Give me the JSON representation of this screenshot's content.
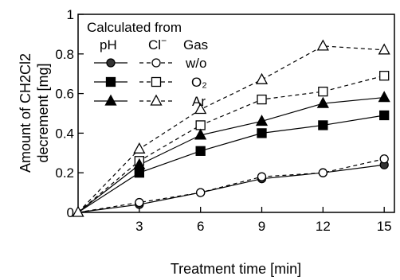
{
  "chart_data": {
    "type": "line",
    "xlabel": "Treatment time [min]",
    "ylabel_line1": "Amount of CH2Cl2",
    "ylabel_line2": "decrement [mg]",
    "x": [
      0,
      3,
      6,
      9,
      12,
      15
    ],
    "xlim": [
      0,
      15.5
    ],
    "ylim": [
      0,
      1.0
    ],
    "x_ticks": [
      3,
      6,
      9,
      12,
      15
    ],
    "y_ticks": [
      0,
      0.2,
      0.4,
      0.6,
      0.8,
      1
    ],
    "y_tick_labels": [
      "0",
      "0.2",
      "0.4",
      "0.6",
      "0.8",
      "1"
    ],
    "grid": false,
    "legend": {
      "placement": "top-left",
      "title": "Calculated from",
      "col_ph": "pH",
      "col_cl": "Cl",
      "col_cl_sup": "−",
      "col_gas": "Gas",
      "rows": [
        "w/o",
        "O₂",
        "Ar"
      ]
    },
    "series": [
      {
        "method": "pH",
        "gas": "w/o",
        "marker": "circle",
        "filled": true,
        "style": "solid",
        "values": [
          0,
          0.04,
          0.1,
          0.17,
          0.2,
          0.24
        ]
      },
      {
        "method": "Cl-",
        "gas": "w/o",
        "marker": "circle",
        "filled": false,
        "style": "dashed",
        "values": [
          0,
          0.05,
          0.1,
          0.18,
          0.2,
          0.27
        ]
      },
      {
        "method": "pH",
        "gas": "O2",
        "marker": "square",
        "filled": true,
        "style": "solid",
        "values": [
          0,
          0.2,
          0.31,
          0.4,
          0.44,
          0.49
        ]
      },
      {
        "method": "Cl-",
        "gas": "O2",
        "marker": "square",
        "filled": false,
        "style": "dashed",
        "values": [
          0,
          0.26,
          0.44,
          0.57,
          0.61,
          0.69
        ]
      },
      {
        "method": "pH",
        "gas": "Ar",
        "marker": "triangle",
        "filled": true,
        "style": "solid",
        "values": [
          0,
          0.24,
          0.39,
          0.46,
          0.55,
          0.58
        ]
      },
      {
        "method": "Cl-",
        "gas": "Ar",
        "marker": "triangle",
        "filled": false,
        "style": "dashed",
        "values": [
          0,
          0.32,
          0.52,
          0.67,
          0.84,
          0.82
        ]
      }
    ],
    "colors": {
      "filled_marker": "#000000",
      "open_marker": "#ffffff",
      "solid_filled_circle": "#333333"
    }
  }
}
